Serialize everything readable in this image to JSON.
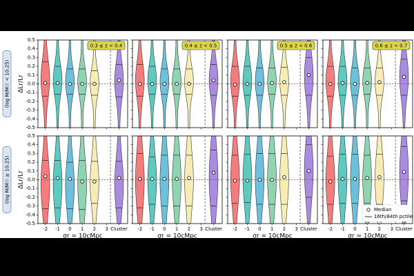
{
  "chart_data": [
    {
      "type": "violin",
      "z_label": "0.3 ≤ z < 0.4",
      "ylabel": "ΔLr/Lr",
      "row_label": "(log M/M☉ < 10.25)",
      "x": [
        -2,
        -1,
        0,
        1,
        2,
        4
      ],
      "median": [
        0.01,
        0.01,
        0.0,
        0.0,
        0.0,
        0.04
      ],
      "p16": [
        -0.14,
        -0.12,
        -0.12,
        -0.12,
        -0.13,
        -0.15
      ],
      "p84": [
        0.25,
        0.2,
        0.17,
        0.17,
        0.15,
        0.22
      ],
      "colors": [
        "#f47c7c",
        "#5ec9c1",
        "#6cc0dc",
        "#8ed4b2",
        "#f7ecb4",
        "#a98be0"
      ],
      "xlim": [
        -2.6,
        4.7
      ],
      "xticks": [
        -2,
        -1,
        0,
        1,
        2,
        3,
        4
      ],
      "divider_x": 3.3,
      "ylim": [
        -0.5,
        0.5
      ],
      "yticks": [
        0.5,
        0.4,
        0.3,
        0.2,
        0.1,
        {
          "value": 0,
          "label": "0.0"
        },
        -0.1,
        -0.2,
        -0.3,
        -0.4,
        -0.5
      ]
    },
    {
      "type": "violin",
      "z_label": "0.4 ≤ z < 0.5",
      "x": [
        -2,
        -1,
        0,
        1,
        2,
        4
      ],
      "median": [
        0.0,
        0.0,
        0.0,
        0.0,
        0.0,
        0.04
      ],
      "p16": [
        -0.14,
        -0.12,
        -0.12,
        -0.12,
        -0.12,
        -0.13
      ],
      "p84": [
        0.22,
        0.2,
        0.17,
        0.17,
        0.17,
        0.22
      ],
      "colors": [
        "#f47c7c",
        "#5ec9c1",
        "#6cc0dc",
        "#8ed4b2",
        "#f7ecb4",
        "#a98be0"
      ],
      "xlim": [
        -2.6,
        4.7
      ],
      "xticks": [
        -2,
        -1,
        0,
        1,
        2,
        3,
        4
      ],
      "divider_x": 3.3,
      "ylim": [
        -0.5,
        0.5
      ],
      "yticks": [
        0.5,
        0.4,
        0.3,
        0.2,
        0.1,
        0,
        -0.1,
        -0.2,
        -0.3,
        -0.4,
        -0.5
      ]
    },
    {
      "type": "violin",
      "z_label": "0.5 ≤ z < 0.6",
      "x": [
        -2,
        -1,
        0,
        1,
        2,
        4
      ],
      "median": [
        -0.01,
        0.0,
        0.0,
        0.01,
        0.02,
        0.1
      ],
      "p16": [
        -0.14,
        -0.13,
        -0.13,
        -0.12,
        -0.13,
        -0.13
      ],
      "p84": [
        0.2,
        0.2,
        0.18,
        0.18,
        0.19,
        0.3
      ],
      "colors": [
        "#f47c7c",
        "#5ec9c1",
        "#6cc0dc",
        "#8ed4b2",
        "#f7ecb4",
        "#a98be0"
      ],
      "xlim": [
        -2.6,
        4.7
      ],
      "xticks": [
        -2,
        -1,
        0,
        1,
        2,
        3,
        4
      ],
      "divider_x": 3.3,
      "ylim": [
        -0.5,
        0.5
      ],
      "yticks": [
        0.5,
        0.4,
        0.3,
        0.2,
        0.1,
        0,
        -0.1,
        -0.2,
        -0.3,
        -0.4,
        -0.5
      ]
    },
    {
      "type": "violin",
      "z_label": "0.6 ≤ z < 0.7",
      "x": [
        -2,
        -1,
        0,
        1,
        2,
        4
      ],
      "median": [
        0.0,
        0.01,
        0.0,
        0.01,
        0.02,
        0.08
      ],
      "p16": [
        -0.14,
        -0.13,
        -0.13,
        -0.12,
        -0.13,
        -0.13
      ],
      "p84": [
        0.2,
        0.2,
        0.18,
        0.18,
        0.18,
        0.28
      ],
      "colors": [
        "#f47c7c",
        "#5ec9c1",
        "#6cc0dc",
        "#8ed4b2",
        "#f7ecb4",
        "#a98be0"
      ],
      "xlim": [
        -2.6,
        4.7
      ],
      "xticks": [
        -2,
        -1,
        0,
        1,
        2,
        3,
        4
      ],
      "divider_x": 3.3,
      "ylim": [
        -0.5,
        0.5
      ],
      "yticks": [
        0.5,
        0.4,
        0.3,
        0.2,
        0.1,
        0,
        -0.1,
        -0.2,
        -0.3,
        -0.4,
        -0.5
      ]
    },
    {
      "type": "violin",
      "ylabel": "ΔLr/Lr",
      "row_label": "(log M/M☉ ≥ 10.25)",
      "xlabel": "σr = 10cMpc",
      "x": [
        -2,
        -1,
        0,
        1,
        2,
        4
      ],
      "median": [
        0.04,
        0.02,
        0.01,
        -0.02,
        -0.02,
        0.02
      ],
      "p16": [
        -0.33,
        -0.32,
        -0.33,
        -0.34,
        -0.27,
        -0.32
      ],
      "p84": [
        0.22,
        0.22,
        0.2,
        0.22,
        0.21,
        0.21
      ],
      "colors": [
        "#f47c7c",
        "#5ec9c1",
        "#6cc0dc",
        "#8ed4b2",
        "#f7ecb4",
        "#a98be0"
      ],
      "xlim": [
        -2.6,
        4.7
      ],
      "xticks": [
        -2,
        -1,
        0,
        1,
        2,
        3,
        {
          "value": 4,
          "label": "Cluster"
        }
      ],
      "divider_x": 3.3,
      "ylim": [
        -0.5,
        0.5
      ],
      "yticks": [
        0.5,
        0.4,
        0.3,
        0.2,
        0.1,
        {
          "value": 0,
          "label": "0.0"
        },
        -0.1,
        -0.2,
        -0.3,
        -0.4,
        -0.5
      ]
    },
    {
      "type": "violin",
      "xlabel": "σr = 10cMpc",
      "x": [
        -2,
        -1,
        0,
        1,
        2,
        4
      ],
      "median": [
        0.01,
        0.01,
        0.01,
        0.01,
        0.02,
        0.08
      ],
      "p16": [
        -0.32,
        -0.28,
        -0.3,
        -0.3,
        -0.3,
        -0.3
      ],
      "p84": [
        0.3,
        0.26,
        0.28,
        0.28,
        0.28,
        0.34
      ],
      "colors": [
        "#f47c7c",
        "#5ec9c1",
        "#6cc0dc",
        "#8ed4b2",
        "#f7ecb4",
        "#a98be0"
      ],
      "xlim": [
        -2.6,
        4.7
      ],
      "xticks": [
        -2,
        -1,
        0,
        1,
        2,
        3,
        {
          "value": 4,
          "label": "Cluster"
        }
      ],
      "divider_x": 3.3,
      "ylim": [
        -0.5,
        0.5
      ],
      "yticks": [
        0.5,
        0.4,
        0.3,
        0.2,
        0.1,
        0,
        -0.1,
        -0.2,
        -0.3,
        -0.4,
        -0.5
      ]
    },
    {
      "type": "violin",
      "xlabel": "σr = 10cMpc",
      "x": [
        -2,
        -1,
        0,
        1,
        2,
        4
      ],
      "median": [
        -0.01,
        -0.01,
        0.0,
        0.0,
        0.03,
        0.1
      ],
      "p16": [
        -0.27,
        -0.26,
        -0.28,
        -0.28,
        -0.28,
        -0.2
      ],
      "p84": [
        0.28,
        0.29,
        0.3,
        0.3,
        0.3,
        0.4
      ],
      "colors": [
        "#f47c7c",
        "#5ec9c1",
        "#6cc0dc",
        "#8ed4b2",
        "#f7ecb4",
        "#a98be0"
      ],
      "xlim": [
        -2.6,
        4.7
      ],
      "xticks": [
        -2,
        -1,
        0,
        1,
        2,
        3,
        {
          "value": 4,
          "label": "Cluster"
        }
      ],
      "divider_x": 3.3,
      "ylim": [
        -0.5,
        0.5
      ],
      "yticks": [
        0.5,
        0.4,
        0.3,
        0.2,
        0.1,
        0,
        -0.1,
        -0.2,
        -0.3,
        -0.4,
        -0.5
      ]
    },
    {
      "type": "violin",
      "xlabel": "σr = 10cMpc",
      "legend": [
        "Median",
        "16th/84th pctile"
      ],
      "legend_corner": "lower right",
      "x": [
        -2,
        -1,
        0,
        1,
        2,
        4
      ],
      "median": [
        -0.02,
        0.01,
        0.01,
        0.02,
        0.03,
        0.09
      ],
      "p16": [
        -0.28,
        -0.27,
        -0.27,
        -0.27,
        -0.28,
        -0.24
      ],
      "p84": [
        0.27,
        0.29,
        0.29,
        0.28,
        0.29,
        0.38
      ],
      "colors": [
        "#f47c7c",
        "#5ec9c1",
        "#6cc0dc",
        "#8ed4b2",
        "#f7ecb4",
        "#a98be0"
      ],
      "xlim": [
        -2.6,
        4.7
      ],
      "xticks": [
        -2,
        -1,
        0,
        1,
        2,
        3,
        {
          "value": 4,
          "label": "Cluster"
        }
      ],
      "divider_x": 3.3,
      "ylim": [
        -0.5,
        0.5
      ],
      "yticks": [
        0.5,
        0.4,
        0.3,
        0.2,
        0.1,
        0,
        -0.1,
        -0.2,
        -0.3,
        -0.4,
        -0.5
      ]
    }
  ]
}
